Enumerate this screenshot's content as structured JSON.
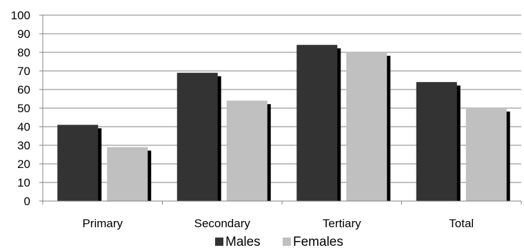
{
  "chart_data": {
    "type": "bar",
    "title": "",
    "xlabel": "",
    "ylabel": "",
    "categories": [
      "Primary",
      "Secondary",
      "Tertiary",
      "Total"
    ],
    "series": [
      {
        "name": "Males",
        "values": [
          41,
          69,
          84,
          64
        ],
        "color": "#333333"
      },
      {
        "name": "Females",
        "values": [
          29,
          54,
          80,
          50
        ],
        "color": "#c0c0c0"
      }
    ],
    "ylim": [
      0,
      100
    ],
    "yticks": [
      0,
      10,
      20,
      30,
      40,
      50,
      60,
      70,
      80,
      90,
      100
    ],
    "grid": true,
    "legend_position": "bottom",
    "shadow_color": "#000000",
    "gridline_color": "#808080"
  }
}
